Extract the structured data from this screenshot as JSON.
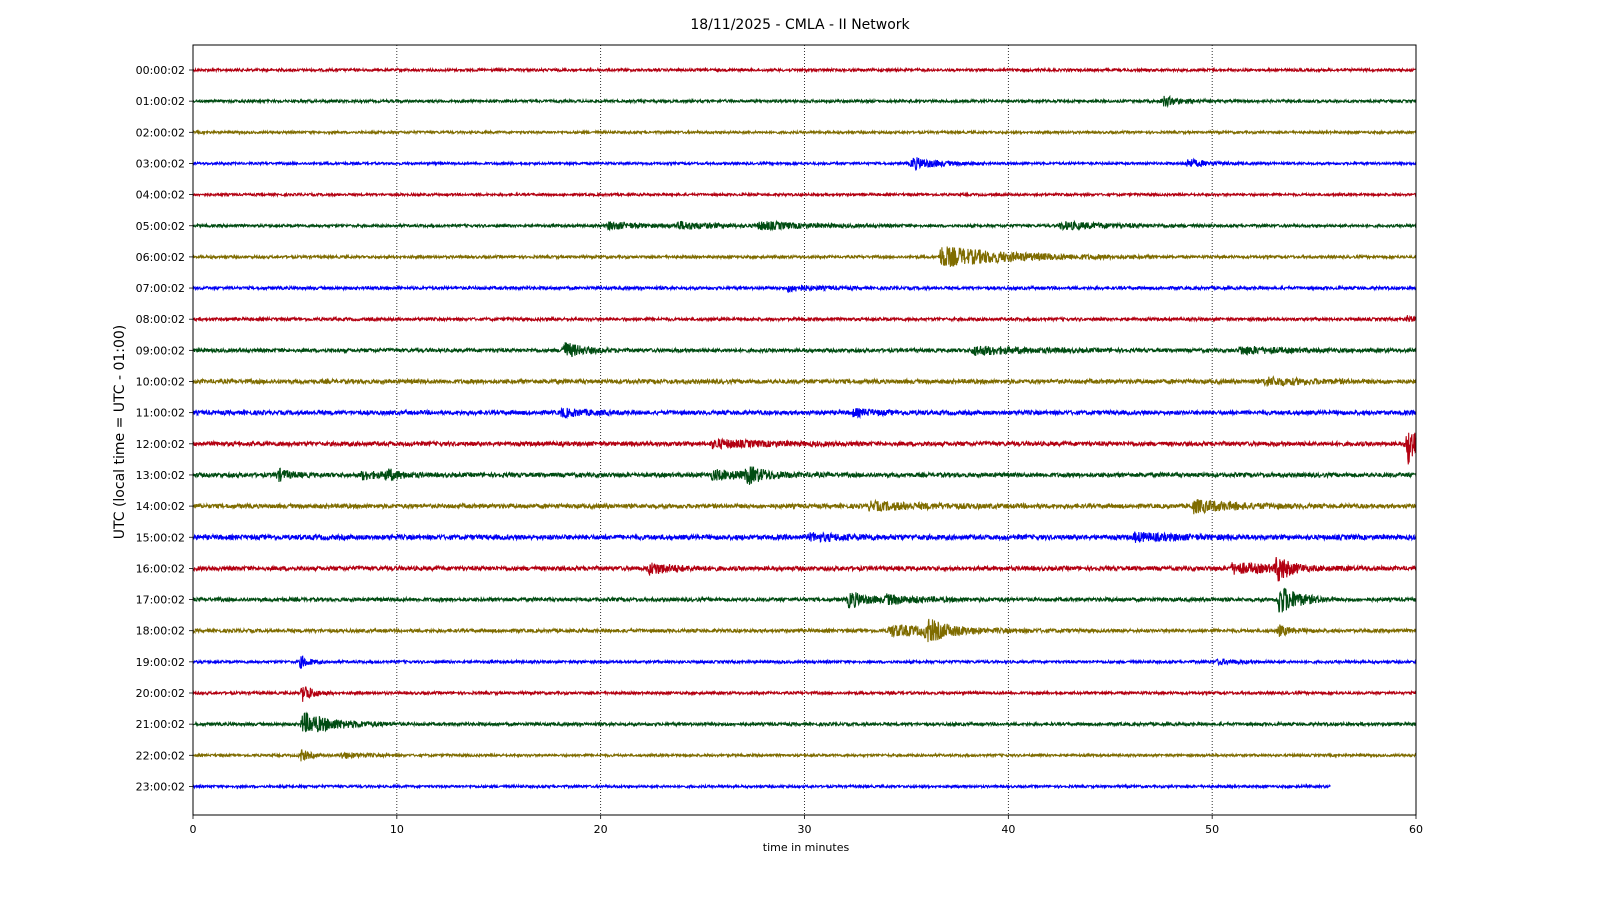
{
  "chart_data": {
    "type": "line",
    "subtype": "helicorder",
    "title": "18/11/2025 - CMLA - II Network",
    "xlabel": "time in minutes",
    "ylabel": "UTC (local time = UTC - 01:00)",
    "xlim": [
      0,
      60
    ],
    "x_ticks": [
      0,
      10,
      20,
      30,
      40,
      50,
      60
    ],
    "x_tick_labels": [
      "0",
      "10",
      "20",
      "30",
      "40",
      "50",
      "60"
    ],
    "grid": "vertical dotted at x ticks",
    "row_colors": [
      "#b30011",
      "#004c12",
      "#7f6c00",
      "#0000f5"
    ],
    "rows": [
      {
        "label": "00:00:02",
        "noise": 0.22,
        "end": 60,
        "events": []
      },
      {
        "label": "01:00:02",
        "noise": 0.22,
        "end": 60,
        "events": [
          {
            "t": 47.6,
            "amp": 0.8,
            "dur": 0.8
          }
        ]
      },
      {
        "label": "02:00:02",
        "noise": 0.2,
        "end": 60,
        "events": []
      },
      {
        "label": "03:00:02",
        "noise": 0.2,
        "end": 60,
        "events": [
          {
            "t": 35.3,
            "amp": 1.0,
            "dur": 1.2
          },
          {
            "t": 48.8,
            "amp": 0.7,
            "dur": 0.9
          }
        ]
      },
      {
        "label": "04:00:02",
        "noise": 0.2,
        "end": 60,
        "events": []
      },
      {
        "label": "05:00:02",
        "noise": 0.22,
        "end": 60,
        "events": [
          {
            "t": 20.4,
            "amp": 0.6,
            "dur": 1.5
          },
          {
            "t": 23.8,
            "amp": 0.6,
            "dur": 1.8
          },
          {
            "t": 27.8,
            "amp": 0.6,
            "dur": 2.5
          },
          {
            "t": 42.6,
            "amp": 0.6,
            "dur": 2.5
          }
        ]
      },
      {
        "label": "06:00:02",
        "noise": 0.22,
        "end": 60,
        "events": [
          {
            "t": 36.7,
            "amp": 1.7,
            "dur": 3.5
          }
        ]
      },
      {
        "label": "07:00:02",
        "noise": 0.25,
        "end": 60,
        "events": [
          {
            "t": 29.2,
            "amp": 0.5,
            "dur": 1.2
          }
        ]
      },
      {
        "label": "08:00:02",
        "noise": 0.25,
        "end": 60,
        "events": [
          {
            "t": 59.6,
            "amp": 0.5,
            "dur": 0.3
          }
        ]
      },
      {
        "label": "09:00:02",
        "noise": 0.3,
        "end": 60,
        "events": [
          {
            "t": 18.2,
            "amp": 1.3,
            "dur": 0.9
          },
          {
            "t": 38.3,
            "amp": 0.7,
            "dur": 2.5
          },
          {
            "t": 51.4,
            "amp": 0.6,
            "dur": 2.0
          }
        ]
      },
      {
        "label": "10:00:02",
        "noise": 0.35,
        "end": 60,
        "events": [
          {
            "t": 52.6,
            "amp": 0.6,
            "dur": 2.0
          }
        ]
      },
      {
        "label": "11:00:02",
        "noise": 0.35,
        "end": 60,
        "events": [
          {
            "t": 18.1,
            "amp": 0.6,
            "dur": 1.2
          },
          {
            "t": 32.4,
            "amp": 0.5,
            "dur": 1.2
          }
        ]
      },
      {
        "label": "12:00:02",
        "noise": 0.35,
        "end": 60,
        "events": [
          {
            "t": 59.6,
            "amp": 3.5,
            "dur": 0.6
          },
          {
            "t": 25.5,
            "amp": 0.6,
            "dur": 2.5
          }
        ]
      },
      {
        "label": "13:00:02",
        "noise": 0.35,
        "end": 60,
        "events": [
          {
            "t": 4.2,
            "amp": 0.9,
            "dur": 0.6
          },
          {
            "t": 9.5,
            "amp": 0.8,
            "dur": 0.6
          },
          {
            "t": 27.2,
            "amp": 1.2,
            "dur": 0.8
          },
          {
            "t": 25.5,
            "amp": 0.7,
            "dur": 2.0
          },
          {
            "t": 8.3,
            "amp": 0.6,
            "dur": 1.0
          }
        ]
      },
      {
        "label": "14:00:02",
        "noise": 0.35,
        "end": 60,
        "events": [
          {
            "t": 49.1,
            "amp": 1.0,
            "dur": 2.0
          },
          {
            "t": 33.2,
            "amp": 0.6,
            "dur": 3.0
          }
        ]
      },
      {
        "label": "15:00:02",
        "noise": 0.4,
        "end": 60,
        "events": [
          {
            "t": 46.2,
            "amp": 0.6,
            "dur": 2.0
          },
          {
            "t": 30.3,
            "amp": 0.5,
            "dur": 2.0
          }
        ]
      },
      {
        "label": "16:00:02",
        "noise": 0.35,
        "end": 60,
        "events": [
          {
            "t": 53.2,
            "amp": 2.2,
            "dur": 0.5
          },
          {
            "t": 51.0,
            "amp": 0.8,
            "dur": 2.5
          },
          {
            "t": 22.4,
            "amp": 0.9,
            "dur": 1.2
          }
        ]
      },
      {
        "label": "17:00:02",
        "noise": 0.3,
        "end": 60,
        "events": [
          {
            "t": 53.3,
            "amp": 2.5,
            "dur": 0.9
          },
          {
            "t": 32.2,
            "amp": 1.3,
            "dur": 0.9
          },
          {
            "t": 34.0,
            "amp": 0.6,
            "dur": 2.0
          }
        ]
      },
      {
        "label": "18:00:02",
        "noise": 0.28,
        "end": 60,
        "events": [
          {
            "t": 36.0,
            "amp": 1.6,
            "dur": 0.9
          },
          {
            "t": 34.2,
            "amp": 0.9,
            "dur": 3.0
          },
          {
            "t": 53.3,
            "amp": 0.8,
            "dur": 0.6
          }
        ]
      },
      {
        "label": "19:00:02",
        "noise": 0.22,
        "end": 60,
        "events": [
          {
            "t": 5.3,
            "amp": 1.0,
            "dur": 0.4
          },
          {
            "t": 50.3,
            "amp": 0.4,
            "dur": 1.0
          }
        ]
      },
      {
        "label": "20:00:02",
        "noise": 0.22,
        "end": 60,
        "events": [
          {
            "t": 5.4,
            "amp": 1.5,
            "dur": 0.5
          }
        ]
      },
      {
        "label": "21:00:02",
        "noise": 0.25,
        "end": 60,
        "events": [
          {
            "t": 5.4,
            "amp": 1.8,
            "dur": 1.6
          }
        ]
      },
      {
        "label": "22:00:02",
        "noise": 0.2,
        "end": 60,
        "events": [
          {
            "t": 5.3,
            "amp": 1.0,
            "dur": 0.4
          },
          {
            "t": 7.3,
            "amp": 0.5,
            "dur": 1.0
          }
        ]
      },
      {
        "label": "23:00:02",
        "noise": 0.2,
        "end": 55.8,
        "events": []
      }
    ]
  }
}
